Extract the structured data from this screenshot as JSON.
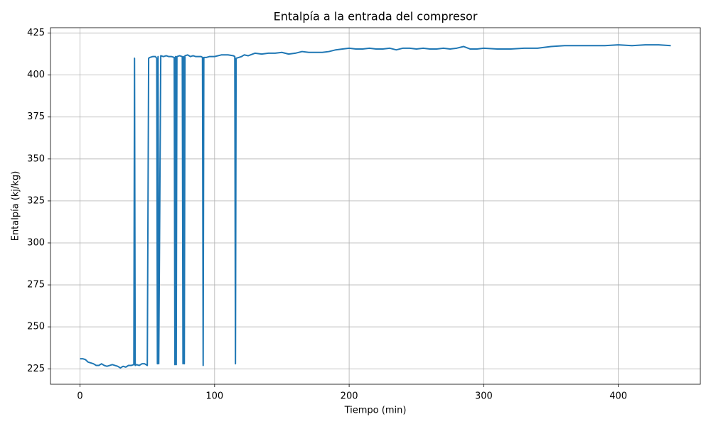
{
  "chart_data": {
    "type": "line",
    "title": "Entalpía a la entrada del compresor",
    "x_label": "Tiempo (min)",
    "y_label": "Entalpía (kj/kg)",
    "color": "#1f77b4",
    "grid": true,
    "xlim": [
      -21.95,
      460.95
    ],
    "ylim": [
      215.8,
      428.2
    ],
    "xticks": [
      0,
      100,
      200,
      300,
      400
    ],
    "yticks": [
      225,
      250,
      275,
      300,
      325,
      350,
      375,
      400,
      425
    ],
    "x": [
      0,
      2,
      4,
      6,
      8,
      10,
      12,
      14,
      16,
      18,
      20,
      22,
      24,
      26,
      28,
      30,
      32,
      34,
      36,
      38,
      40,
      40.5,
      41,
      42,
      44,
      46,
      48,
      50,
      51,
      52,
      54,
      56,
      57,
      57.5,
      58,
      58.5,
      60,
      62,
      64,
      66,
      68,
      70,
      70.5,
      71,
      71.5,
      72,
      74,
      76,
      76.5,
      77,
      77.5,
      78,
      80,
      82,
      84,
      86,
      88,
      90,
      91,
      91.5,
      92,
      94,
      96,
      98,
      100,
      105,
      110,
      114,
      115,
      115.5,
      116,
      120,
      122,
      125,
      130,
      135,
      140,
      145,
      150,
      155,
      160,
      165,
      170,
      175,
      180,
      185,
      190,
      195,
      200,
      205,
      210,
      215,
      220,
      225,
      230,
      235,
      240,
      245,
      250,
      255,
      260,
      265,
      270,
      275,
      280,
      285,
      290,
      295,
      300,
      310,
      320,
      330,
      340,
      350,
      360,
      370,
      380,
      390,
      400,
      410,
      420,
      430,
      439
    ],
    "values": [
      231,
      231,
      230.5,
      229,
      228.5,
      228,
      227,
      227,
      228,
      227,
      226.5,
      227,
      227.5,
      227,
      226.5,
      225.5,
      226.5,
      226,
      227,
      227,
      227.5,
      410,
      227,
      227.5,
      227,
      228,
      228,
      227,
      410,
      410.5,
      411,
      411,
      410,
      228,
      411,
      228,
      411.5,
      411,
      411.5,
      411,
      411,
      410.5,
      227.5,
      411,
      227.5,
      411,
      411.5,
      411,
      228,
      411,
      228,
      411.5,
      412,
      411,
      411.5,
      411,
      411,
      411,
      410.5,
      227,
      410.5,
      410.5,
      411,
      411,
      411,
      412,
      412,
      411.5,
      411,
      228,
      410,
      411,
      412,
      411.5,
      413,
      412.5,
      413,
      413,
      413.5,
      412.5,
      413,
      414,
      413.5,
      413.5,
      413.5,
      414,
      415,
      415.5,
      416,
      415.5,
      415.5,
      416,
      415.5,
      415.5,
      416,
      415,
      416,
      416,
      415.5,
      416,
      415.5,
      415.5,
      416,
      415.5,
      416,
      417,
      415.5,
      415.5,
      416,
      415.5,
      415.5,
      416,
      416,
      417,
      417.5,
      417.5,
      417.5,
      417.5,
      418,
      417.5,
      418,
      418,
      417.5
    ]
  }
}
